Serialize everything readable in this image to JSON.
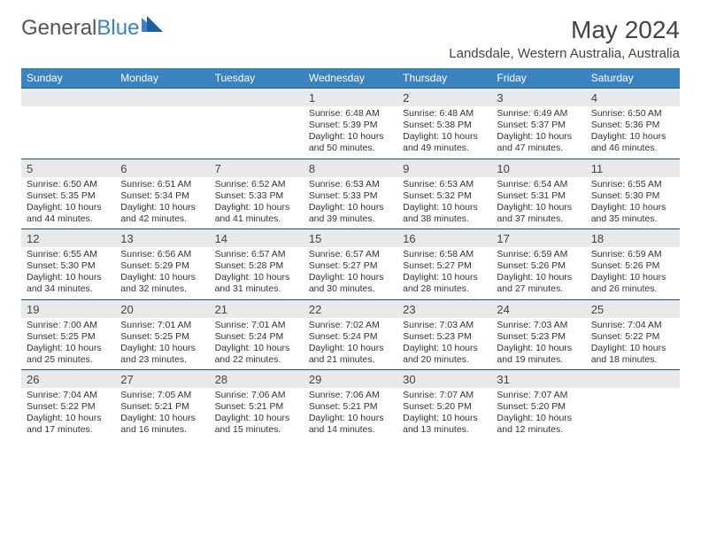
{
  "brand": {
    "part1": "General",
    "part2": "Blue",
    "logo_color": "#3b83c0"
  },
  "title": "May 2024",
  "location": "Landsdale, Western Australia, Australia",
  "header_bg": "#3b83c0",
  "daynum_bg": "#e8e9ea",
  "row_border": "#205080",
  "weekdays": [
    "Sunday",
    "Monday",
    "Tuesday",
    "Wednesday",
    "Thursday",
    "Friday",
    "Saturday"
  ],
  "weeks": [
    [
      null,
      null,
      null,
      {
        "n": "1",
        "sr": "6:48 AM",
        "ss": "5:39 PM",
        "dl": "10 hours and 50 minutes."
      },
      {
        "n": "2",
        "sr": "6:48 AM",
        "ss": "5:38 PM",
        "dl": "10 hours and 49 minutes."
      },
      {
        "n": "3",
        "sr": "6:49 AM",
        "ss": "5:37 PM",
        "dl": "10 hours and 47 minutes."
      },
      {
        "n": "4",
        "sr": "6:50 AM",
        "ss": "5:36 PM",
        "dl": "10 hours and 46 minutes."
      }
    ],
    [
      {
        "n": "5",
        "sr": "6:50 AM",
        "ss": "5:35 PM",
        "dl": "10 hours and 44 minutes."
      },
      {
        "n": "6",
        "sr": "6:51 AM",
        "ss": "5:34 PM",
        "dl": "10 hours and 42 minutes."
      },
      {
        "n": "7",
        "sr": "6:52 AM",
        "ss": "5:33 PM",
        "dl": "10 hours and 41 minutes."
      },
      {
        "n": "8",
        "sr": "6:53 AM",
        "ss": "5:33 PM",
        "dl": "10 hours and 39 minutes."
      },
      {
        "n": "9",
        "sr": "6:53 AM",
        "ss": "5:32 PM",
        "dl": "10 hours and 38 minutes."
      },
      {
        "n": "10",
        "sr": "6:54 AM",
        "ss": "5:31 PM",
        "dl": "10 hours and 37 minutes."
      },
      {
        "n": "11",
        "sr": "6:55 AM",
        "ss": "5:30 PM",
        "dl": "10 hours and 35 minutes."
      }
    ],
    [
      {
        "n": "12",
        "sr": "6:55 AM",
        "ss": "5:30 PM",
        "dl": "10 hours and 34 minutes."
      },
      {
        "n": "13",
        "sr": "6:56 AM",
        "ss": "5:29 PM",
        "dl": "10 hours and 32 minutes."
      },
      {
        "n": "14",
        "sr": "6:57 AM",
        "ss": "5:28 PM",
        "dl": "10 hours and 31 minutes."
      },
      {
        "n": "15",
        "sr": "6:57 AM",
        "ss": "5:27 PM",
        "dl": "10 hours and 30 minutes."
      },
      {
        "n": "16",
        "sr": "6:58 AM",
        "ss": "5:27 PM",
        "dl": "10 hours and 28 minutes."
      },
      {
        "n": "17",
        "sr": "6:59 AM",
        "ss": "5:26 PM",
        "dl": "10 hours and 27 minutes."
      },
      {
        "n": "18",
        "sr": "6:59 AM",
        "ss": "5:26 PM",
        "dl": "10 hours and 26 minutes."
      }
    ],
    [
      {
        "n": "19",
        "sr": "7:00 AM",
        "ss": "5:25 PM",
        "dl": "10 hours and 25 minutes."
      },
      {
        "n": "20",
        "sr": "7:01 AM",
        "ss": "5:25 PM",
        "dl": "10 hours and 23 minutes."
      },
      {
        "n": "21",
        "sr": "7:01 AM",
        "ss": "5:24 PM",
        "dl": "10 hours and 22 minutes."
      },
      {
        "n": "22",
        "sr": "7:02 AM",
        "ss": "5:24 PM",
        "dl": "10 hours and 21 minutes."
      },
      {
        "n": "23",
        "sr": "7:03 AM",
        "ss": "5:23 PM",
        "dl": "10 hours and 20 minutes."
      },
      {
        "n": "24",
        "sr": "7:03 AM",
        "ss": "5:23 PM",
        "dl": "10 hours and 19 minutes."
      },
      {
        "n": "25",
        "sr": "7:04 AM",
        "ss": "5:22 PM",
        "dl": "10 hours and 18 minutes."
      }
    ],
    [
      {
        "n": "26",
        "sr": "7:04 AM",
        "ss": "5:22 PM",
        "dl": "10 hours and 17 minutes."
      },
      {
        "n": "27",
        "sr": "7:05 AM",
        "ss": "5:21 PM",
        "dl": "10 hours and 16 minutes."
      },
      {
        "n": "28",
        "sr": "7:06 AM",
        "ss": "5:21 PM",
        "dl": "10 hours and 15 minutes."
      },
      {
        "n": "29",
        "sr": "7:06 AM",
        "ss": "5:21 PM",
        "dl": "10 hours and 14 minutes."
      },
      {
        "n": "30",
        "sr": "7:07 AM",
        "ss": "5:20 PM",
        "dl": "10 hours and 13 minutes."
      },
      {
        "n": "31",
        "sr": "7:07 AM",
        "ss": "5:20 PM",
        "dl": "10 hours and 12 minutes."
      },
      null
    ]
  ]
}
